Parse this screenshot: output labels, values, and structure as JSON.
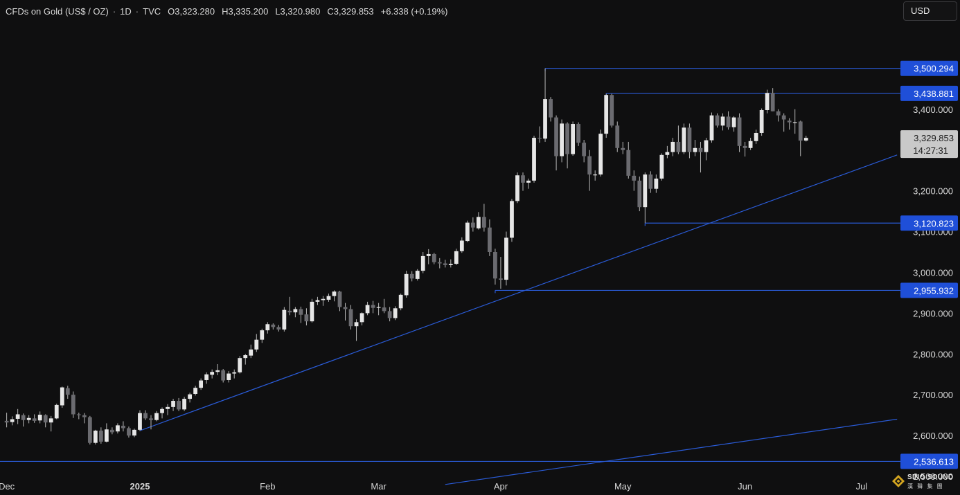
{
  "header": {
    "symbol": "CFDs on Gold (US$ / OZ)",
    "interval": "1D",
    "source": "TVC",
    "open": "O3,323.280",
    "high": "H3,335.200",
    "low": "L3,320.980",
    "close": "C3,329.853",
    "change": "+6.338 (+0.19%)",
    "separator": "·"
  },
  "currency_button": "USD",
  "logo": {
    "line1": "SINO SOUND",
    "line2": "漢 聲 集 團"
  },
  "colors": {
    "background": "#0f0f10",
    "up_candle": "#e6e6e6",
    "down_candle": "#6b6b70",
    "wick": "#b8b8b8",
    "line": "#2a5bd7",
    "label_bg": "#1f4fd8",
    "axis_text": "#d8d8d8",
    "current_price_bg": "#c9c9c9"
  },
  "chart_data": {
    "type": "candlestick",
    "title": "CFDs on Gold (US$ / OZ) · 1D · TVC",
    "ylim": [
      2500,
      3600
    ],
    "y_ticks": [
      2500,
      2600,
      2700,
      2800,
      2900,
      3000,
      3100,
      3200,
      3400
    ],
    "y_tick_labels": [
      "2,500.000",
      "2,600.000",
      "2,700.000",
      "2,800.000",
      "2,900.000",
      "3,000.000",
      "3,100.000",
      "3,200.000",
      "3,400.000"
    ],
    "x_labels": [
      {
        "label": "Dec",
        "index": 0
      },
      {
        "label": "2025",
        "index": 24
      },
      {
        "label": "Feb",
        "index": 47
      },
      {
        "label": "Mar",
        "index": 67
      },
      {
        "label": "Apr",
        "index": 89
      },
      {
        "label": "May",
        "index": 111
      },
      {
        "label": "Jun",
        "index": 133
      },
      {
        "label": "Jul",
        "index": 154
      }
    ],
    "x_range": [
      -1.2,
      161
    ],
    "candles": [
      {
        "o": 2636,
        "h": 2656,
        "l": 2620,
        "c": 2632
      },
      {
        "o": 2633,
        "h": 2647,
        "l": 2625,
        "c": 2640
      },
      {
        "o": 2641,
        "h": 2665,
        "l": 2628,
        "c": 2652
      },
      {
        "o": 2650,
        "h": 2654,
        "l": 2622,
        "c": 2638
      },
      {
        "o": 2638,
        "h": 2650,
        "l": 2630,
        "c": 2643
      },
      {
        "o": 2642,
        "h": 2652,
        "l": 2631,
        "c": 2636
      },
      {
        "o": 2637,
        "h": 2659,
        "l": 2630,
        "c": 2651
      },
      {
        "o": 2650,
        "h": 2652,
        "l": 2620,
        "c": 2632
      },
      {
        "o": 2632,
        "h": 2648,
        "l": 2610,
        "c": 2642
      },
      {
        "o": 2642,
        "h": 2678,
        "l": 2640,
        "c": 2675
      },
      {
        "o": 2674,
        "h": 2720,
        "l": 2668,
        "c": 2718
      },
      {
        "o": 2716,
        "h": 2722,
        "l": 2690,
        "c": 2700
      },
      {
        "o": 2700,
        "h": 2708,
        "l": 2643,
        "c": 2652
      },
      {
        "o": 2652,
        "h": 2656,
        "l": 2640,
        "c": 2650
      },
      {
        "o": 2650,
        "h": 2655,
        "l": 2630,
        "c": 2645
      },
      {
        "o": 2645,
        "h": 2648,
        "l": 2578,
        "c": 2582
      },
      {
        "o": 2582,
        "h": 2614,
        "l": 2578,
        "c": 2612
      },
      {
        "o": 2612,
        "h": 2620,
        "l": 2580,
        "c": 2585
      },
      {
        "o": 2585,
        "h": 2630,
        "l": 2583,
        "c": 2615
      },
      {
        "o": 2614,
        "h": 2620,
        "l": 2603,
        "c": 2608
      },
      {
        "o": 2610,
        "h": 2630,
        "l": 2605,
        "c": 2625
      },
      {
        "o": 2624,
        "h": 2635,
        "l": 2610,
        "c": 2618
      },
      {
        "o": 2618,
        "h": 2622,
        "l": 2595,
        "c": 2600
      },
      {
        "o": 2600,
        "h": 2617,
        "l": 2596,
        "c": 2614
      },
      {
        "o": 2614,
        "h": 2662,
        "l": 2611,
        "c": 2655
      },
      {
        "o": 2655,
        "h": 2662,
        "l": 2638,
        "c": 2642
      },
      {
        "o": 2642,
        "h": 2650,
        "l": 2615,
        "c": 2638
      },
      {
        "o": 2638,
        "h": 2660,
        "l": 2635,
        "c": 2655
      },
      {
        "o": 2655,
        "h": 2669,
        "l": 2642,
        "c": 2665
      },
      {
        "o": 2665,
        "h": 2677,
        "l": 2650,
        "c": 2670
      },
      {
        "o": 2670,
        "h": 2690,
        "l": 2660,
        "c": 2685
      },
      {
        "o": 2685,
        "h": 2692,
        "l": 2660,
        "c": 2664
      },
      {
        "o": 2664,
        "h": 2695,
        "l": 2660,
        "c": 2690
      },
      {
        "o": 2690,
        "h": 2705,
        "l": 2681,
        "c": 2701
      },
      {
        "o": 2702,
        "h": 2722,
        "l": 2698,
        "c": 2717
      },
      {
        "o": 2717,
        "h": 2740,
        "l": 2712,
        "c": 2735
      },
      {
        "o": 2736,
        "h": 2755,
        "l": 2727,
        "c": 2750
      },
      {
        "o": 2749,
        "h": 2762,
        "l": 2740,
        "c": 2756
      },
      {
        "o": 2756,
        "h": 2775,
        "l": 2748,
        "c": 2760
      },
      {
        "o": 2760,
        "h": 2763,
        "l": 2730,
        "c": 2735
      },
      {
        "o": 2736,
        "h": 2758,
        "l": 2730,
        "c": 2752
      },
      {
        "o": 2752,
        "h": 2762,
        "l": 2740,
        "c": 2755
      },
      {
        "o": 2755,
        "h": 2795,
        "l": 2752,
        "c": 2790
      },
      {
        "o": 2790,
        "h": 2800,
        "l": 2774,
        "c": 2797
      },
      {
        "o": 2796,
        "h": 2823,
        "l": 2790,
        "c": 2811
      },
      {
        "o": 2811,
        "h": 2849,
        "l": 2805,
        "c": 2835
      },
      {
        "o": 2835,
        "h": 2862,
        "l": 2827,
        "c": 2858
      },
      {
        "o": 2858,
        "h": 2878,
        "l": 2850,
        "c": 2873
      },
      {
        "o": 2872,
        "h": 2875,
        "l": 2860,
        "c": 2866
      },
      {
        "o": 2866,
        "h": 2871,
        "l": 2855,
        "c": 2860
      },
      {
        "o": 2860,
        "h": 2915,
        "l": 2855,
        "c": 2908
      },
      {
        "o": 2906,
        "h": 2940,
        "l": 2895,
        "c": 2902
      },
      {
        "o": 2902,
        "h": 2915,
        "l": 2890,
        "c": 2910
      },
      {
        "o": 2910,
        "h": 2916,
        "l": 2876,
        "c": 2896
      },
      {
        "o": 2897,
        "h": 2912,
        "l": 2870,
        "c": 2880
      },
      {
        "o": 2880,
        "h": 2935,
        "l": 2877,
        "c": 2928
      },
      {
        "o": 2928,
        "h": 2940,
        "l": 2920,
        "c": 2932
      },
      {
        "o": 2932,
        "h": 2942,
        "l": 2918,
        "c": 2935
      },
      {
        "o": 2933,
        "h": 2948,
        "l": 2928,
        "c": 2942
      },
      {
        "o": 2942,
        "h": 2956,
        "l": 2929,
        "c": 2953
      },
      {
        "o": 2953,
        "h": 2955,
        "l": 2905,
        "c": 2915
      },
      {
        "o": 2915,
        "h": 2925,
        "l": 2882,
        "c": 2910
      },
      {
        "o": 2910,
        "h": 2920,
        "l": 2860,
        "c": 2868
      },
      {
        "o": 2868,
        "h": 2885,
        "l": 2832,
        "c": 2878
      },
      {
        "o": 2878,
        "h": 2902,
        "l": 2870,
        "c": 2900
      },
      {
        "o": 2900,
        "h": 2928,
        "l": 2895,
        "c": 2920
      },
      {
        "o": 2920,
        "h": 2930,
        "l": 2900,
        "c": 2913
      },
      {
        "o": 2913,
        "h": 2925,
        "l": 2895,
        "c": 2915
      },
      {
        "o": 2914,
        "h": 2935,
        "l": 2900,
        "c": 2905
      },
      {
        "o": 2905,
        "h": 2915,
        "l": 2880,
        "c": 2888
      },
      {
        "o": 2888,
        "h": 2917,
        "l": 2883,
        "c": 2912
      },
      {
        "o": 2912,
        "h": 2948,
        "l": 2907,
        "c": 2945
      },
      {
        "o": 2944,
        "h": 3004,
        "l": 2938,
        "c": 2996
      },
      {
        "o": 2996,
        "h": 3003,
        "l": 2978,
        "c": 2985
      },
      {
        "o": 2984,
        "h": 3008,
        "l": 2980,
        "c": 3004
      },
      {
        "o": 3004,
        "h": 3050,
        "l": 2998,
        "c": 3040
      },
      {
        "o": 3040,
        "h": 3057,
        "l": 3020,
        "c": 3045
      },
      {
        "o": 3045,
        "h": 3048,
        "l": 3020,
        "c": 3025
      },
      {
        "o": 3025,
        "h": 3035,
        "l": 3010,
        "c": 3022
      },
      {
        "o": 3022,
        "h": 3031,
        "l": 3012,
        "c": 3018
      },
      {
        "o": 3018,
        "h": 3032,
        "l": 3012,
        "c": 3021
      },
      {
        "o": 3021,
        "h": 3058,
        "l": 3018,
        "c": 3052
      },
      {
        "o": 3052,
        "h": 3086,
        "l": 3048,
        "c": 3078
      },
      {
        "o": 3077,
        "h": 3127,
        "l": 3074,
        "c": 3122
      },
      {
        "o": 3122,
        "h": 3135,
        "l": 3100,
        "c": 3110
      },
      {
        "o": 3108,
        "h": 3148,
        "l": 3105,
        "c": 3136
      },
      {
        "o": 3136,
        "h": 3168,
        "l": 3100,
        "c": 3110
      },
      {
        "o": 3110,
        "h": 3130,
        "l": 3040,
        "c": 3050
      },
      {
        "o": 3050,
        "h": 3058,
        "l": 2970,
        "c": 2985
      },
      {
        "o": 2985,
        "h": 3038,
        "l": 2960,
        "c": 2982
      },
      {
        "o": 2982,
        "h": 3100,
        "l": 2968,
        "c": 3085
      },
      {
        "o": 3085,
        "h": 3180,
        "l": 3075,
        "c": 3175
      },
      {
        "o": 3175,
        "h": 3245,
        "l": 3170,
        "c": 3238
      },
      {
        "o": 3238,
        "h": 3245,
        "l": 3200,
        "c": 3220
      },
      {
        "o": 3220,
        "h": 3230,
        "l": 3205,
        "c": 3225
      },
      {
        "o": 3225,
        "h": 3335,
        "l": 3220,
        "c": 3330
      },
      {
        "o": 3330,
        "h": 3358,
        "l": 3318,
        "c": 3328
      },
      {
        "o": 3328,
        "h": 3500,
        "l": 3320,
        "c": 3425
      },
      {
        "o": 3425,
        "h": 3430,
        "l": 3370,
        "c": 3380
      },
      {
        "o": 3380,
        "h": 3385,
        "l": 3250,
        "c": 3285
      },
      {
        "o": 3285,
        "h": 3375,
        "l": 3270,
        "c": 3365
      },
      {
        "o": 3365,
        "h": 3368,
        "l": 3255,
        "c": 3290
      },
      {
        "o": 3290,
        "h": 3370,
        "l": 3286,
        "c": 3364
      },
      {
        "o": 3364,
        "h": 3368,
        "l": 3310,
        "c": 3318
      },
      {
        "o": 3318,
        "h": 3325,
        "l": 3270,
        "c": 3285
      },
      {
        "o": 3285,
        "h": 3300,
        "l": 3200,
        "c": 3240
      },
      {
        "o": 3240,
        "h": 3250,
        "l": 3225,
        "c": 3240
      },
      {
        "o": 3240,
        "h": 3350,
        "l": 3235,
        "c": 3340
      },
      {
        "o": 3340,
        "h": 3438,
        "l": 3330,
        "c": 3435
      },
      {
        "o": 3435,
        "h": 3438,
        "l": 3355,
        "c": 3360
      },
      {
        "o": 3360,
        "h": 3370,
        "l": 3295,
        "c": 3305
      },
      {
        "o": 3305,
        "h": 3320,
        "l": 3290,
        "c": 3300
      },
      {
        "o": 3300,
        "h": 3320,
        "l": 3230,
        "c": 3237
      },
      {
        "o": 3237,
        "h": 3250,
        "l": 3200,
        "c": 3225
      },
      {
        "o": 3225,
        "h": 3235,
        "l": 3150,
        "c": 3160
      },
      {
        "o": 3160,
        "h": 3245,
        "l": 3121,
        "c": 3240
      },
      {
        "o": 3240,
        "h": 3248,
        "l": 3195,
        "c": 3205
      },
      {
        "o": 3205,
        "h": 3240,
        "l": 3195,
        "c": 3230
      },
      {
        "o": 3230,
        "h": 3292,
        "l": 3225,
        "c": 3288
      },
      {
        "o": 3288,
        "h": 3310,
        "l": 3280,
        "c": 3295
      },
      {
        "o": 3295,
        "h": 3330,
        "l": 3285,
        "c": 3320
      },
      {
        "o": 3320,
        "h": 3360,
        "l": 3290,
        "c": 3295
      },
      {
        "o": 3295,
        "h": 3365,
        "l": 3290,
        "c": 3355
      },
      {
        "o": 3355,
        "h": 3365,
        "l": 3280,
        "c": 3295
      },
      {
        "o": 3295,
        "h": 3325,
        "l": 3285,
        "c": 3305
      },
      {
        "o": 3305,
        "h": 3320,
        "l": 3245,
        "c": 3295
      },
      {
        "o": 3295,
        "h": 3330,
        "l": 3275,
        "c": 3324
      },
      {
        "o": 3324,
        "h": 3392,
        "l": 3318,
        "c": 3385
      },
      {
        "o": 3385,
        "h": 3390,
        "l": 3355,
        "c": 3360
      },
      {
        "o": 3360,
        "h": 3390,
        "l": 3348,
        "c": 3382
      },
      {
        "o": 3382,
        "h": 3395,
        "l": 3350,
        "c": 3356
      },
      {
        "o": 3356,
        "h": 3383,
        "l": 3345,
        "c": 3380
      },
      {
        "o": 3380,
        "h": 3390,
        "l": 3295,
        "c": 3310
      },
      {
        "o": 3310,
        "h": 3320,
        "l": 3284,
        "c": 3305
      },
      {
        "o": 3305,
        "h": 3330,
        "l": 3300,
        "c": 3322
      },
      {
        "o": 3322,
        "h": 3350,
        "l": 3315,
        "c": 3342
      },
      {
        "o": 3342,
        "h": 3402,
        "l": 3335,
        "c": 3398
      },
      {
        "o": 3398,
        "h": 3448,
        "l": 3390,
        "c": 3440
      },
      {
        "o": 3440,
        "h": 3452,
        "l": 3395,
        "c": 3395
      },
      {
        "o": 3395,
        "h": 3400,
        "l": 3370,
        "c": 3385
      },
      {
        "o": 3385,
        "h": 3390,
        "l": 3345,
        "c": 3375
      },
      {
        "o": 3372,
        "h": 3378,
        "l": 3350,
        "c": 3368
      },
      {
        "o": 3368,
        "h": 3400,
        "l": 3340,
        "c": 3368
      },
      {
        "o": 3370,
        "h": 3372,
        "l": 3285,
        "c": 3323
      },
      {
        "o": 3323.28,
        "h": 3335.2,
        "l": 3320.98,
        "c": 3329.853
      }
    ],
    "levels": [
      3500.294,
      3438.881,
      3120.823,
      2955.932,
      2536.613
    ],
    "level_labels": [
      "3,500.294",
      "3,438.881",
      "3,120.823",
      "2,955.932",
      "2,536.613"
    ],
    "level_start_index": [
      97,
      108,
      115,
      88,
      null
    ],
    "trendlines": [
      {
        "from": {
          "i": 24,
          "y": 2612
        },
        "to": {
          "i": 160.4,
          "y": 3288
        }
      },
      {
        "from": {
          "i": 79,
          "y": 2480
        },
        "to": {
          "i": 160.4,
          "y": 2640
        }
      }
    ],
    "current_price": "3,329.853",
    "countdown": "14:27:31"
  }
}
